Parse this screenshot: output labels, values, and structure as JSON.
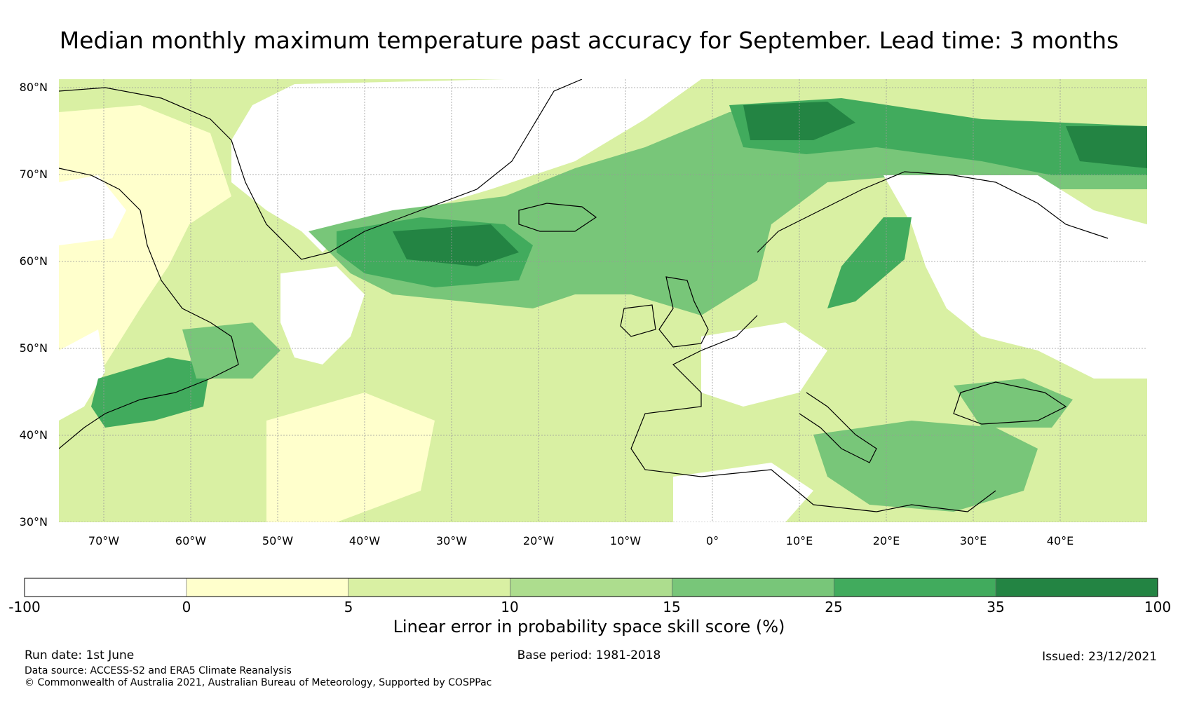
{
  "title": "Median monthly maximum temperature past accuracy for September. Lead time: 3 months",
  "map": {
    "lat_labels": [
      "80°N",
      "70°N",
      "60°N",
      "50°N",
      "40°N",
      "30°N"
    ],
    "lon_labels": [
      "70°W",
      "60°W",
      "50°W",
      "40°W",
      "30°W",
      "20°W",
      "10°W",
      "0°",
      "10°E",
      "20°E",
      "30°E",
      "40°E"
    ]
  },
  "colorbar": {
    "bounds": [
      "-100",
      "0",
      "5",
      "10",
      "15",
      "25",
      "35",
      "100"
    ],
    "colors": [
      "#ffffff",
      "#ffffcc",
      "#d9f0a3",
      "#addd8e",
      "#78c679",
      "#41ab5d",
      "#238443"
    ],
    "label": "Linear error in probability space skill score (%)"
  },
  "footer": {
    "run_date": "Run date: 1st June",
    "base_period": "Base period: 1981-2018",
    "issued": "Issued: 23/12/2021",
    "data_source": "Data source: ACCESS-S2 and ERA5 Climate Reanalysis",
    "copyright": "© Commonwealth of Australia 2021, Australian Bureau of Meteorology, Supported by COSPPac"
  }
}
